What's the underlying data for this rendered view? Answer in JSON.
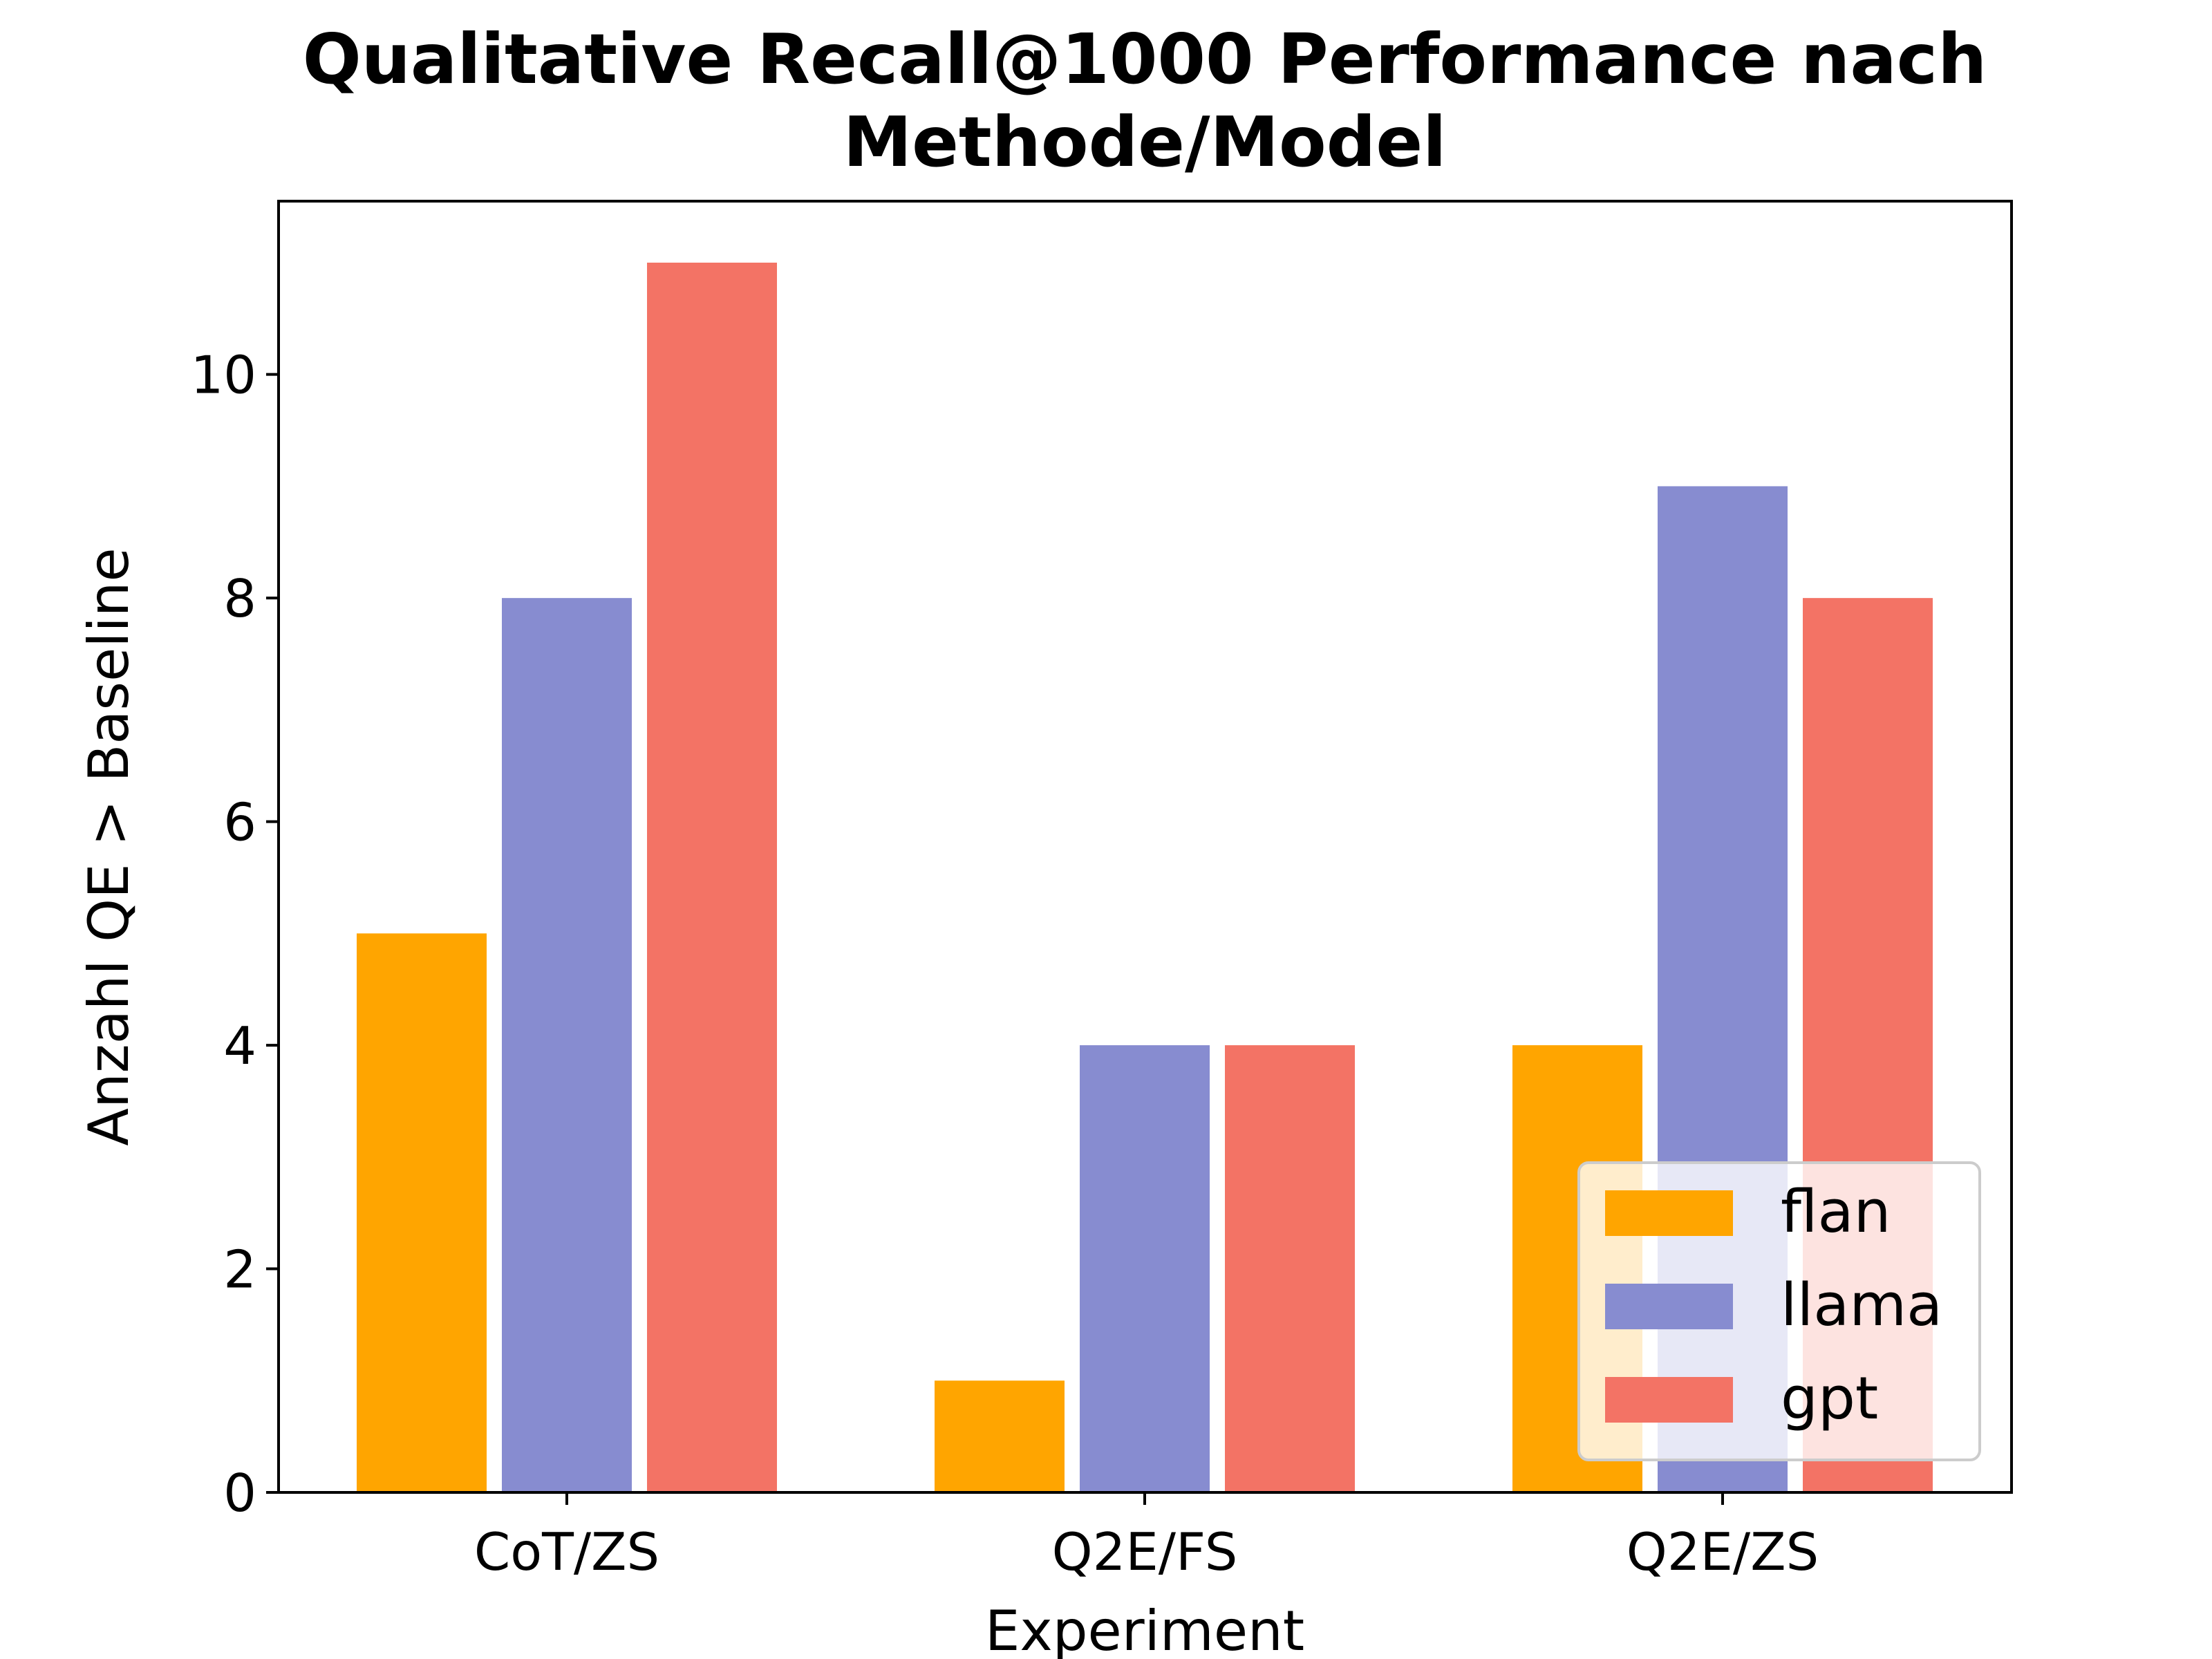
{
  "chart_data": {
    "type": "bar",
    "title_lines": [
      "Qualitative Recall@1000 Performance nach",
      "Methode/Model"
    ],
    "xlabel": "Experiment",
    "ylabel": "Anzahl QE > Baseline",
    "categories": [
      "CoT/ZS",
      "Q2E/FS",
      "Q2E/ZS"
    ],
    "series": [
      {
        "name": "flan",
        "color": "#FFA500",
        "values": [
          5,
          1,
          4
        ]
      },
      {
        "name": "llama",
        "color": "#878CD0",
        "values": [
          8,
          4,
          9
        ]
      },
      {
        "name": "gpt",
        "color": "#F37365",
        "values": [
          11,
          4,
          8
        ]
      }
    ],
    "ylim": [
      0,
      11.55
    ],
    "yticks": [
      0,
      2,
      4,
      6,
      8,
      10
    ],
    "ytick_labels": [
      "0",
      "2",
      "4",
      "6",
      "8",
      "10"
    ],
    "legend_placement": "lower-right",
    "grid": false
  }
}
